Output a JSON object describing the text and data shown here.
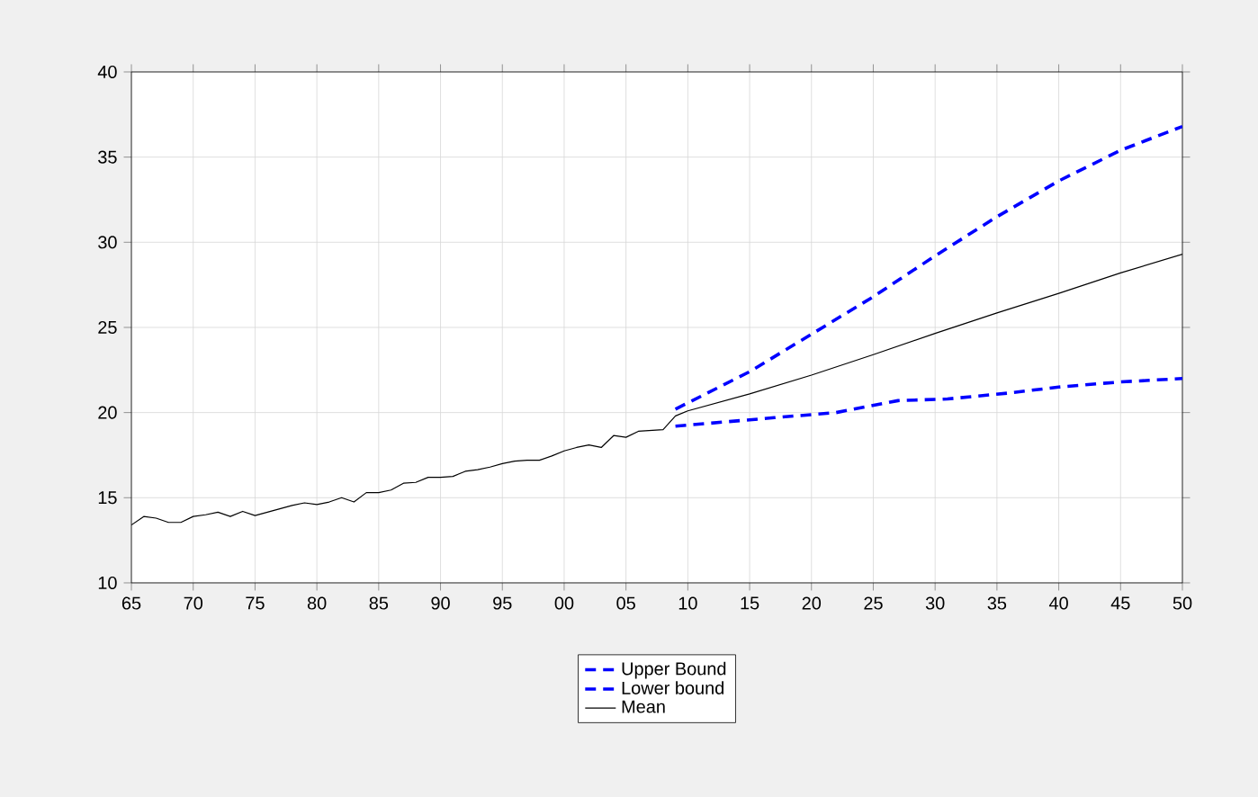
{
  "chart_data": {
    "type": "line",
    "xlim": [
      1965,
      2050
    ],
    "ylim": [
      10,
      40
    ],
    "xticks": [
      {
        "value": 1965,
        "label": "65"
      },
      {
        "value": 1970,
        "label": "70"
      },
      {
        "value": 1975,
        "label": "75"
      },
      {
        "value": 1980,
        "label": "80"
      },
      {
        "value": 1985,
        "label": "85"
      },
      {
        "value": 1990,
        "label": "90"
      },
      {
        "value": 1995,
        "label": "95"
      },
      {
        "value": 2000,
        "label": "00"
      },
      {
        "value": 2005,
        "label": "05"
      },
      {
        "value": 2010,
        "label": "10"
      },
      {
        "value": 2015,
        "label": "15"
      },
      {
        "value": 2020,
        "label": "20"
      },
      {
        "value": 2025,
        "label": "25"
      },
      {
        "value": 2030,
        "label": "30"
      },
      {
        "value": 2035,
        "label": "35"
      },
      {
        "value": 2040,
        "label": "40"
      },
      {
        "value": 2045,
        "label": "45"
      },
      {
        "value": 2050,
        "label": "50"
      }
    ],
    "yticks": [
      10,
      15,
      20,
      25,
      30,
      35,
      40
    ],
    "grid": true,
    "legend": "bottom",
    "series": [
      {
        "name": "Upper Bound",
        "color": "#0000ff",
        "line_style": "dashed",
        "x": [
          2009,
          2015,
          2020,
          2025,
          2030,
          2035,
          2040,
          2045,
          2050
        ],
        "values": [
          20.2,
          22.4,
          24.6,
          26.8,
          29.2,
          31.5,
          33.6,
          35.4,
          36.8
        ]
      },
      {
        "name": "Lower bound",
        "color": "#0000ff",
        "line_style": "dashed",
        "x": [
          2009,
          2017,
          2022,
          2027,
          2031,
          2036,
          2040,
          2045,
          2050
        ],
        "values": [
          19.2,
          19.7,
          20.0,
          20.7,
          20.8,
          21.15,
          21.5,
          21.8,
          22.0
        ]
      },
      {
        "name": "Mean",
        "color": "#000000",
        "line_style": "solid",
        "x": [
          1965,
          1966,
          1967,
          1968,
          1969,
          1970,
          1971,
          1972,
          1973,
          1974,
          1975,
          1976,
          1977,
          1978,
          1979,
          1980,
          1981,
          1982,
          1983,
          1984,
          1985,
          1986,
          1987,
          1988,
          1989,
          1990,
          1991,
          1992,
          1993,
          1994,
          1995,
          1996,
          1997,
          1998,
          1999,
          2000,
          2001,
          2002,
          2003,
          2004,
          2005,
          2006,
          2007,
          2008,
          2009,
          2010,
          2015,
          2020,
          2025,
          2030,
          2035,
          2040,
          2045,
          2050
        ],
        "values": [
          13.4,
          13.9,
          13.8,
          13.55,
          13.55,
          13.9,
          14.0,
          14.15,
          13.9,
          14.2,
          13.95,
          14.15,
          14.35,
          14.55,
          14.7,
          14.6,
          14.75,
          15.0,
          14.75,
          15.3,
          15.3,
          15.45,
          15.85,
          15.9,
          16.2,
          16.2,
          16.25,
          16.55,
          16.65,
          16.8,
          17.0,
          17.15,
          17.2,
          17.2,
          17.45,
          17.75,
          17.95,
          18.1,
          17.95,
          18.65,
          18.55,
          18.9,
          18.95,
          19.0,
          19.8,
          20.1,
          21.1,
          22.2,
          23.4,
          24.65,
          25.85,
          27.0,
          28.2,
          29.3
        ]
      }
    ]
  }
}
